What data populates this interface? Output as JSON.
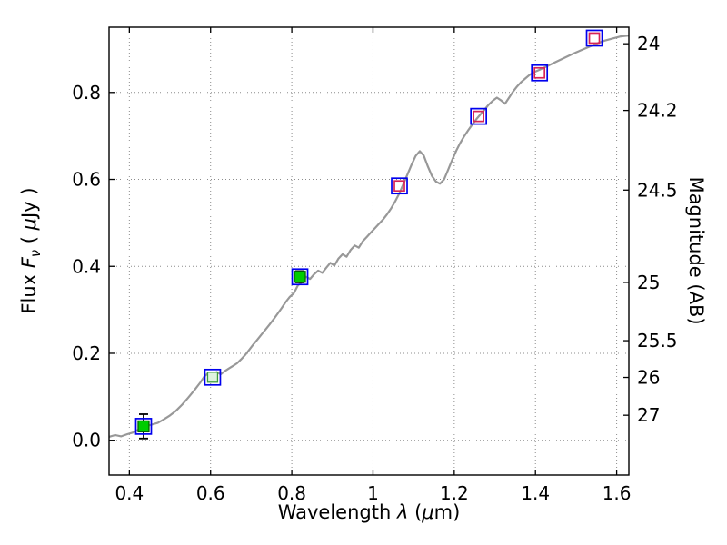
{
  "labels": {
    "xlabel_prefix": "Wavelength  ",
    "xlabel_lambda": "λ",
    "xlabel_unit_open": " (",
    "xlabel_mu": "μ",
    "xlabel_unit_close": "m)",
    "ylabel_flux_prefix": "Flux  ",
    "ylabel_flux_symbol": "F",
    "ylabel_flux_sub": "ν",
    "ylabel_unit_open": "  ( ",
    "ylabel_unit_mu": "μ",
    "ylabel_unit_close": "Jy )",
    "ylabel_right": "Magnitude (AB)"
  },
  "chart_data": {
    "type": "line",
    "title": "",
    "xlabel": "Wavelength λ (μm)",
    "ylabel": "Flux Fν ( μJy )",
    "ylabel_right": "Magnitude (AB)",
    "xlim": [
      0.35,
      1.63
    ],
    "ylim": [
      -0.08,
      0.95
    ],
    "grid": {
      "on": true,
      "style": "dotted",
      "color": "#8c8c8c"
    },
    "x_ticks": [
      0.4,
      0.6,
      0.8,
      1,
      1.2,
      1.4,
      1.6
    ],
    "x_tick_labels": [
      "0.4",
      "0.6",
      "0.8",
      "1",
      "1.2",
      "1.4",
      "1.6"
    ],
    "y_ticks": [
      0.0,
      0.2,
      0.4,
      0.6,
      0.8
    ],
    "y_tick_labels": [
      "0.0",
      "0.2",
      "0.4",
      "0.6",
      "0.8"
    ],
    "right_axis": {
      "tick_mags": [
        24,
        24.2,
        24.5,
        25,
        25.5,
        26,
        27
      ],
      "tick_labels": [
        "24",
        "24.2",
        "24.5",
        "25",
        "25.5",
        "26",
        "27"
      ],
      "ab_zeropoint_ujy": 23.9
    },
    "colors": {
      "spectrum": "#989898",
      "blue_square": "#0000ee",
      "green_fill": "#00cc00",
      "green_edge": "#006600",
      "pale_green_fill": "#dff3df",
      "pale_green_edge": "#3c9c3c",
      "red_square": "#d62456",
      "errorbar": "#000000",
      "frame": "#000000"
    },
    "series": [
      {
        "name": "model-spectrum",
        "type": "line",
        "width": 2.2,
        "x": [
          0.35,
          0.365,
          0.38,
          0.395,
          0.41,
          0.425,
          0.44,
          0.455,
          0.47,
          0.485,
          0.5,
          0.515,
          0.53,
          0.545,
          0.56,
          0.575,
          0.585,
          0.595,
          0.605,
          0.615,
          0.625,
          0.635,
          0.645,
          0.655,
          0.665,
          0.675,
          0.685,
          0.695,
          0.705,
          0.715,
          0.725,
          0.735,
          0.745,
          0.755,
          0.765,
          0.775,
          0.785,
          0.795,
          0.805,
          0.815,
          0.825,
          0.835,
          0.845,
          0.855,
          0.865,
          0.875,
          0.885,
          0.895,
          0.905,
          0.915,
          0.925,
          0.935,
          0.945,
          0.955,
          0.965,
          0.975,
          0.985,
          0.995,
          1.005,
          1.015,
          1.025,
          1.035,
          1.045,
          1.055,
          1.065,
          1.075,
          1.085,
          1.095,
          1.105,
          1.115,
          1.125,
          1.135,
          1.145,
          1.155,
          1.165,
          1.175,
          1.185,
          1.195,
          1.205,
          1.215,
          1.225,
          1.235,
          1.245,
          1.255,
          1.265,
          1.275,
          1.285,
          1.295,
          1.305,
          1.315,
          1.325,
          1.335,
          1.345,
          1.355,
          1.365,
          1.375,
          1.385,
          1.395,
          1.41,
          1.43,
          1.45,
          1.47,
          1.49,
          1.51,
          1.53,
          1.55,
          1.57,
          1.59,
          1.61,
          1.63
        ],
        "y": [
          0.008,
          0.012,
          0.009,
          0.014,
          0.018,
          0.026,
          0.032,
          0.036,
          0.04,
          0.048,
          0.057,
          0.068,
          0.082,
          0.098,
          0.115,
          0.133,
          0.147,
          0.155,
          0.149,
          0.157,
          0.152,
          0.159,
          0.165,
          0.171,
          0.177,
          0.186,
          0.196,
          0.208,
          0.22,
          0.231,
          0.243,
          0.254,
          0.266,
          0.278,
          0.291,
          0.304,
          0.318,
          0.33,
          0.338,
          0.356,
          0.364,
          0.376,
          0.371,
          0.382,
          0.39,
          0.385,
          0.397,
          0.408,
          0.402,
          0.418,
          0.428,
          0.422,
          0.438,
          0.448,
          0.443,
          0.458,
          0.468,
          0.478,
          0.488,
          0.498,
          0.508,
          0.52,
          0.534,
          0.55,
          0.568,
          0.59,
          0.612,
          0.634,
          0.654,
          0.665,
          0.655,
          0.63,
          0.608,
          0.595,
          0.59,
          0.6,
          0.622,
          0.645,
          0.666,
          0.684,
          0.7,
          0.714,
          0.727,
          0.739,
          0.75,
          0.761,
          0.772,
          0.781,
          0.788,
          0.782,
          0.774,
          0.788,
          0.802,
          0.814,
          0.824,
          0.832,
          0.84,
          0.846,
          0.852,
          0.861,
          0.87,
          0.879,
          0.888,
          0.896,
          0.904,
          0.912,
          0.919,
          0.924,
          0.929,
          0.931
        ]
      },
      {
        "name": "photometry",
        "type": "scatter",
        "points": [
          {
            "x": 0.435,
            "y": 0.032,
            "yerr": 0.028,
            "outer": "blue-open",
            "inner": "green-filled"
          },
          {
            "x": 0.605,
            "y": 0.145,
            "yerr": 0.008,
            "outer": "blue-open",
            "inner": "pale-green-filled"
          },
          {
            "x": 0.82,
            "y": 0.376,
            "yerr": 0.013,
            "outer": "blue-open",
            "inner": "green-filled"
          },
          {
            "x": 1.065,
            "y": 0.585,
            "yerr": 0.0,
            "outer": "blue-open",
            "inner": "red-open"
          },
          {
            "x": 1.26,
            "y": 0.745,
            "yerr": 0.0,
            "outer": "blue-open",
            "inner": "red-open"
          },
          {
            "x": 1.41,
            "y": 0.845,
            "yerr": 0.0,
            "outer": "blue-open",
            "inner": "red-open"
          },
          {
            "x": 1.545,
            "y": 0.925,
            "yerr": 0.0,
            "outer": "blue-open",
            "inner": "red-open"
          }
        ]
      }
    ]
  }
}
